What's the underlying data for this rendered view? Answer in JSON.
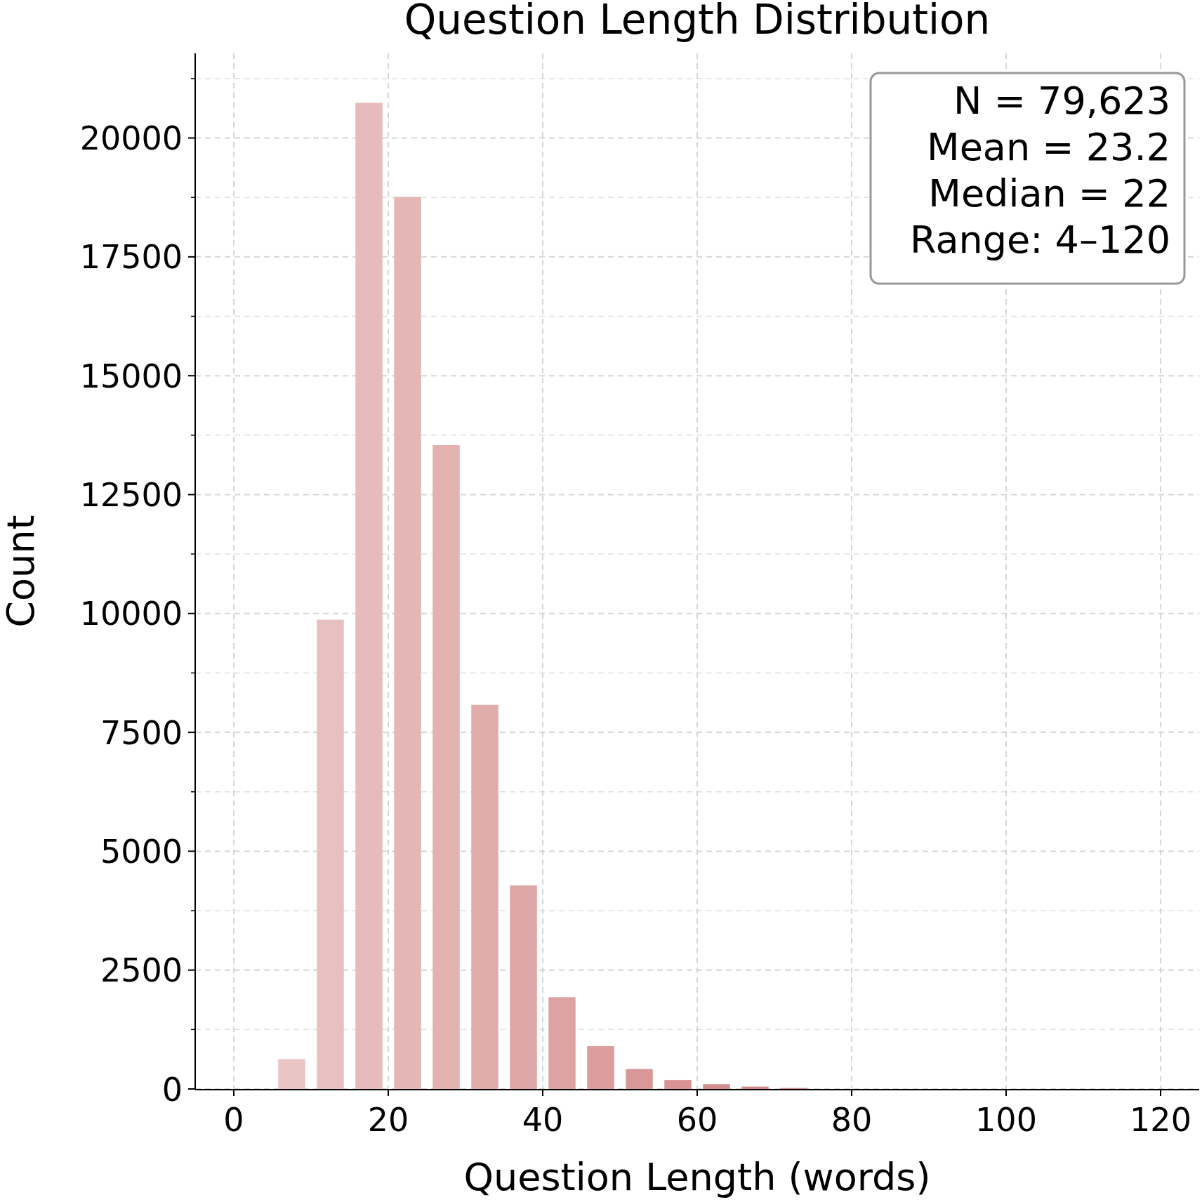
{
  "chart_data": {
    "type": "histogram",
    "title": "Question Length Distribution",
    "xlabel": "Question Length (words)",
    "ylabel": "Count",
    "bins": [
      5,
      10,
      15,
      20,
      25,
      30,
      35,
      40,
      45,
      50,
      55,
      60,
      65,
      70,
      75
    ],
    "values": [
      630,
      9870,
      20740,
      18760,
      13540,
      8080,
      4280,
      1930,
      900,
      420,
      190,
      100,
      50,
      20
    ],
    "colors": [
      "#e9c5c5",
      "#e7c0c0",
      "#e6bbbb",
      "#e4b6b6",
      "#e2b1b1",
      "#e0acac",
      "#dea7a7",
      "#dda2a2",
      "#db9d9d",
      "#d99898",
      "#d79393",
      "#d58e8e",
      "#d48989",
      "#d38686"
    ],
    "xlim": [
      -5,
      125
    ],
    "xticks": [
      0,
      20,
      40,
      60,
      80,
      100,
      120
    ],
    "ylim": [
      0,
      21780
    ],
    "yticks": [
      0,
      {
        "value": 1250,
        "label": null
      },
      2500,
      {
        "value": 3750,
        "label": null
      },
      5000,
      {
        "value": 6250,
        "label": null
      },
      7500,
      {
        "value": 8750,
        "label": null
      },
      10000,
      {
        "value": 11250,
        "label": null
      },
      12500,
      {
        "value": 13750,
        "label": null
      },
      15000,
      {
        "value": 16250,
        "label": null
      },
      17500,
      {
        "value": 18750,
        "label": null
      },
      20000,
      {
        "value": 21250,
        "label": null
      }
    ],
    "grid": true,
    "annotations": [
      "N = 79,623",
      "Mean = 23.2",
      "Median = 22",
      "Range: 4–120"
    ]
  }
}
